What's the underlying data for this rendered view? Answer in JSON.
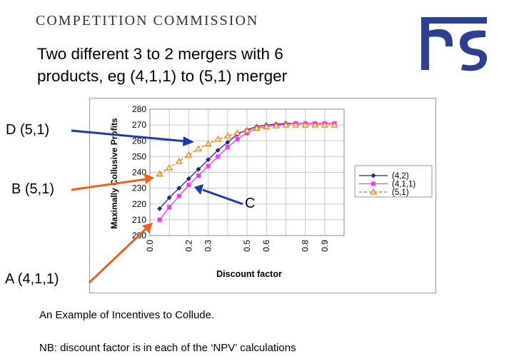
{
  "header": {
    "organization": "COMPETITION COMMISSION"
  },
  "slide": {
    "title_line1": "Two different 3 to 2 mergers with 6",
    "title_line2": "products, eg (4,1,1) to (5,1) merger",
    "callouts": {
      "d": "D (5,1)",
      "b": "B (5,1)",
      "c": "C",
      "a": "A (4,1,1)"
    },
    "caption": "An Example of Incentives to Collude.",
    "note": "NB: discount factor is in each of the ‘NPV’ calculations"
  },
  "colors": {
    "series_4_2": "#1f2d7a",
    "series_4_1_1": "#ff33ff",
    "series_5_1": "#ff6600",
    "arrow_blue": "#1f3aa8",
    "arrow_orange": "#e8641e",
    "logo": "#2e3f8f"
  },
  "icons": {
    "logo": "commission-logo-icon"
  },
  "chart_data": {
    "type": "line",
    "xlabel": "Discount factor",
    "ylabel": "Maximally Collusive Profits",
    "ylim": [
      200,
      280
    ],
    "yticks": [
      "200",
      "210",
      "220",
      "230",
      "240",
      "250",
      "260",
      "270",
      "280"
    ],
    "xticks": [
      "0.0",
      "0.2",
      "0.3",
      "0.5",
      "0.6",
      "0.8",
      "0.9"
    ],
    "grid": true,
    "legend_position": "right",
    "series": [
      {
        "name": "(4,2)",
        "marker": "diamond",
        "points": [
          [
            0.05,
            217
          ],
          [
            0.1,
            224
          ],
          [
            0.15,
            230
          ],
          [
            0.2,
            236
          ],
          [
            0.25,
            242
          ],
          [
            0.3,
            248
          ],
          [
            0.35,
            254
          ],
          [
            0.4,
            259
          ],
          [
            0.45,
            264
          ],
          [
            0.5,
            267
          ],
          [
            0.55,
            269
          ],
          [
            0.6,
            270
          ],
          [
            0.65,
            270.5
          ],
          [
            0.7,
            271
          ],
          [
            0.75,
            271
          ],
          [
            0.8,
            271
          ],
          [
            0.85,
            271
          ],
          [
            0.9,
            271
          ],
          [
            0.95,
            271
          ]
        ]
      },
      {
        "name": "(4,1,1)",
        "marker": "square",
        "points": [
          [
            0.05,
            210
          ],
          [
            0.1,
            218
          ],
          [
            0.15,
            225
          ],
          [
            0.2,
            232
          ],
          [
            0.25,
            238
          ],
          [
            0.3,
            244
          ],
          [
            0.35,
            250
          ],
          [
            0.4,
            256
          ],
          [
            0.45,
            261
          ],
          [
            0.5,
            265
          ],
          [
            0.55,
            268
          ],
          [
            0.6,
            269
          ],
          [
            0.65,
            270
          ],
          [
            0.7,
            270.5
          ],
          [
            0.75,
            271
          ],
          [
            0.8,
            271
          ],
          [
            0.85,
            271
          ],
          [
            0.9,
            271
          ],
          [
            0.95,
            271
          ]
        ]
      },
      {
        "name": "(5,1)",
        "marker": "triangle",
        "points": [
          [
            0.05,
            239
          ],
          [
            0.1,
            243
          ],
          [
            0.15,
            247
          ],
          [
            0.2,
            251
          ],
          [
            0.25,
            255
          ],
          [
            0.3,
            258
          ],
          [
            0.35,
            261
          ],
          [
            0.4,
            263
          ],
          [
            0.45,
            265
          ],
          [
            0.5,
            266.5
          ],
          [
            0.55,
            268
          ],
          [
            0.6,
            269
          ],
          [
            0.65,
            269.5
          ],
          [
            0.7,
            270
          ],
          [
            0.75,
            270
          ],
          [
            0.8,
            270
          ],
          [
            0.85,
            270
          ],
          [
            0.9,
            270
          ],
          [
            0.95,
            270
          ]
        ]
      }
    ]
  }
}
